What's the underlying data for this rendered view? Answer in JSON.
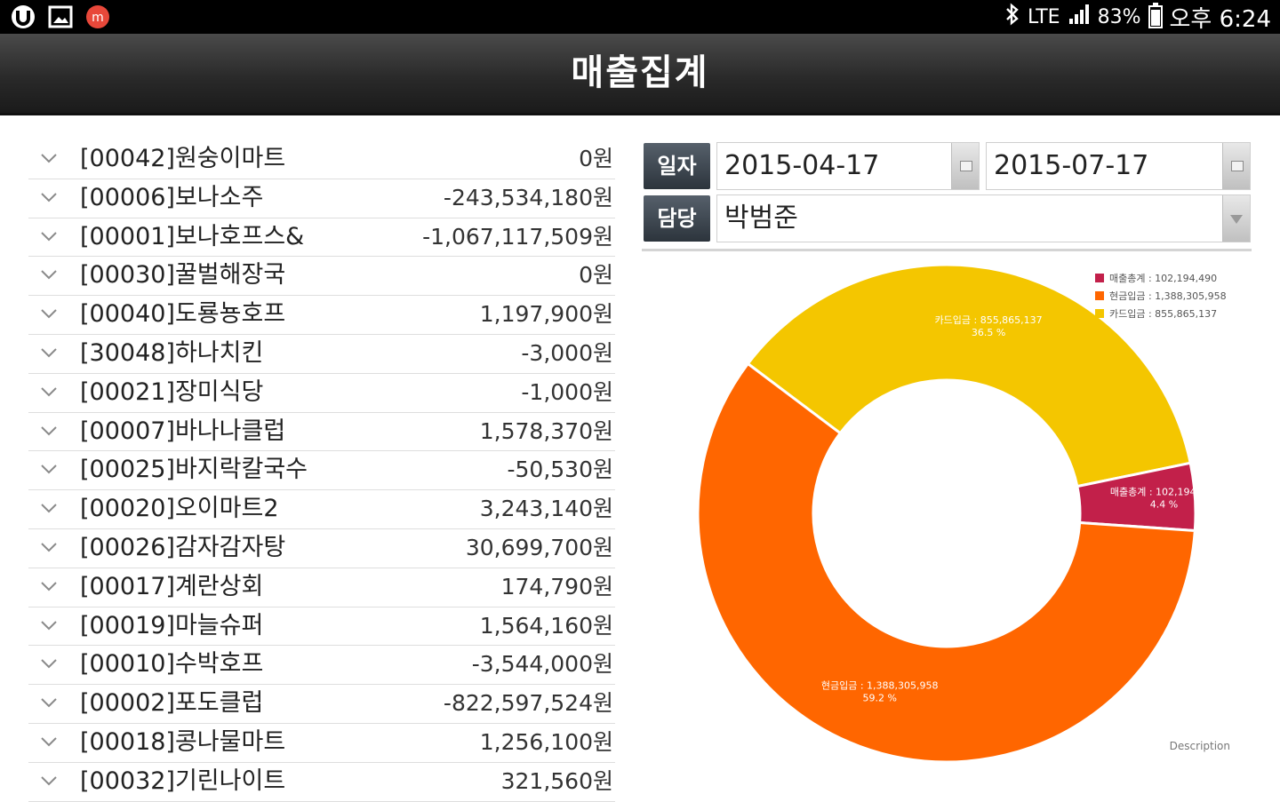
{
  "status_bar": {
    "network": "LTE",
    "battery": "83%",
    "time": "오후 6:24"
  },
  "header": {
    "title": "매출집계"
  },
  "stores": [
    {
      "name": "[00042]원숭이마트",
      "amount": "0원"
    },
    {
      "name": "[00006]보나소주",
      "amount": "-243,534,180원"
    },
    {
      "name": "[00001]보나호프스&",
      "amount": "-1,067,117,509원"
    },
    {
      "name": "[00030]꿀벌해장국",
      "amount": "0원"
    },
    {
      "name": "[00040]도룡뇽호프",
      "amount": "1,197,900원"
    },
    {
      "name": "[30048]하나치킨",
      "amount": "-3,000원"
    },
    {
      "name": "[00021]장미식당",
      "amount": "-1,000원"
    },
    {
      "name": "[00007]바나나클럽",
      "amount": "1,578,370원"
    },
    {
      "name": "[00025]바지락칼국수",
      "amount": "-50,530원"
    },
    {
      "name": "[00020]오이마트2",
      "amount": "3,243,140원"
    },
    {
      "name": "[00026]감자감자탕",
      "amount": "30,699,700원"
    },
    {
      "name": "[00017]계란상회",
      "amount": "174,790원"
    },
    {
      "name": "[00019]마늘슈퍼",
      "amount": "1,564,160원"
    },
    {
      "name": "[00010]수박호프",
      "amount": "-3,544,000원"
    },
    {
      "name": "[00002]포도클럽",
      "amount": "-822,597,524원"
    },
    {
      "name": "[00018]콩나물마트",
      "amount": "1,256,100원"
    },
    {
      "name": "[00032]기린나이트",
      "amount": "321,560원"
    }
  ],
  "filters": {
    "date_label": "일자",
    "start_date": "2015-04-17",
    "end_date": "2015-07-17",
    "manager_label": "담당",
    "manager": "박범준"
  },
  "chart_data": {
    "type": "pie",
    "style": "donut",
    "slices": [
      {
        "name": "매출총계",
        "value": 102194490,
        "value_label": "102,194,490",
        "percent_label": "4.4 %",
        "color": "#c2204a"
      },
      {
        "name": "현금입금",
        "value": 1388305958,
        "value_label": "1,388,305,958",
        "percent_label": "59.2 %",
        "color": "#ff6600"
      },
      {
        "name": "카드입금",
        "value": 855865137,
        "value_label": "855,865,137",
        "percent_label": "36.5 %",
        "color": "#f4c600"
      }
    ],
    "legend_position": "top-right",
    "description": "Description"
  }
}
